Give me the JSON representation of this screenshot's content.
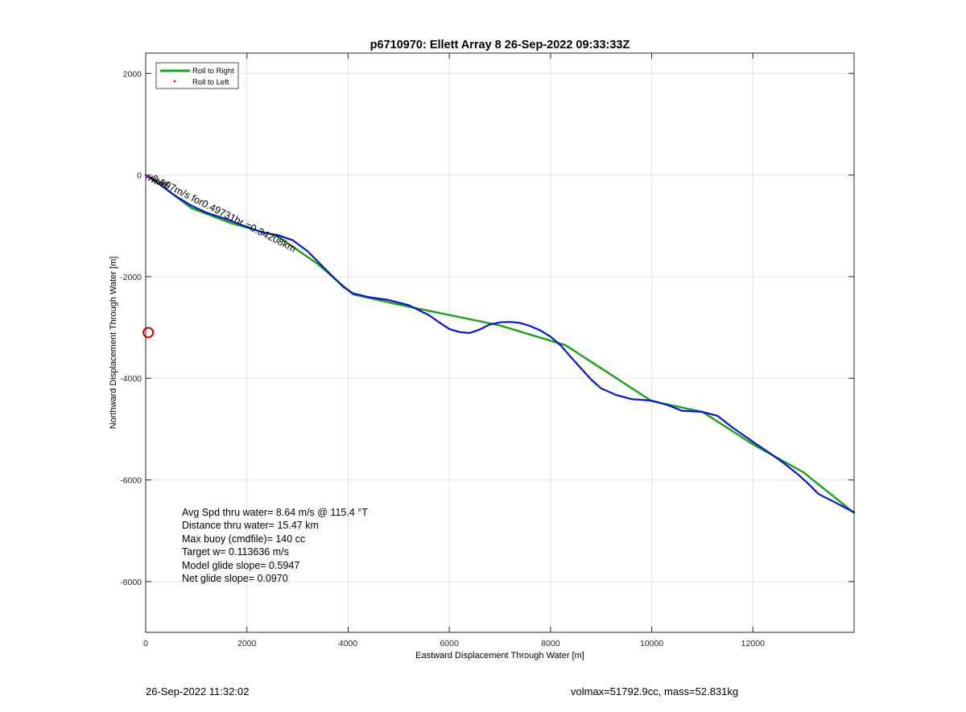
{
  "chart_data": {
    "type": "line",
    "title": "p6710970: Ellett Array 8 26-Sep-2022 09:33:33Z",
    "xlabel": "Eastward Displacement Through Water [m]",
    "ylabel": "Northward Displacement Through Water [m]",
    "xlim": [
      0,
      14000
    ],
    "ylim": [
      -9000,
      2400
    ],
    "xticks": [
      0,
      2000,
      4000,
      6000,
      8000,
      10000,
      12000
    ],
    "yticks": [
      2000,
      0,
      -2000,
      -4000,
      -6000,
      -8000
    ],
    "grid": true,
    "legend": {
      "position": "top-left",
      "entries": [
        {
          "label": "Roll to Right",
          "color": "#1aa01a",
          "marker": "line"
        },
        {
          "label": "Roll to Left",
          "color": "#ff0000",
          "marker": "dot"
        }
      ]
    },
    "series": [
      {
        "name": "Roll to Right",
        "color": "#1aa01a",
        "x": [
          0,
          300,
          900,
          1700,
          2600,
          3400,
          4100,
          5000,
          7000,
          8300,
          10000,
          11000,
          12000,
          13000,
          14000
        ],
        "y": [
          0,
          -200,
          -650,
          -950,
          -1200,
          -1750,
          -2350,
          -2550,
          -2960,
          -3350,
          -4450,
          -4660,
          -5300,
          -5850,
          -6650
        ]
      },
      {
        "color": "#0a14c8",
        "x": [
          0,
          150,
          300,
          600,
          900,
          1200,
          1600,
          2000,
          2300,
          2600,
          2900,
          3200,
          3600,
          3900,
          4100,
          4400,
          4800,
          5200,
          5600,
          5800,
          6000,
          6200,
          6400,
          6600,
          6800,
          7000,
          7200,
          7400,
          7600,
          7800,
          8000,
          8200,
          8400,
          8600,
          8800,
          9000,
          9300,
          9600,
          10000,
          10300,
          10600,
          11000,
          11300,
          11600,
          12000,
          12300,
          12600,
          12900,
          13100,
          13300,
          13600,
          14000
        ],
        "y": [
          0,
          -80,
          -200,
          -420,
          -600,
          -740,
          -870,
          -1020,
          -1130,
          -1180,
          -1280,
          -1500,
          -1900,
          -2200,
          -2330,
          -2400,
          -2460,
          -2560,
          -2760,
          -2900,
          -3030,
          -3090,
          -3110,
          -3040,
          -2940,
          -2900,
          -2890,
          -2910,
          -2970,
          -3060,
          -3180,
          -3350,
          -3580,
          -3800,
          -4020,
          -4200,
          -4330,
          -4410,
          -4440,
          -4520,
          -4640,
          -4660,
          -4740,
          -4970,
          -5250,
          -5450,
          -5660,
          -5900,
          -6080,
          -6280,
          -6430,
          -6640
        ]
      }
    ],
    "annotations": {
      "track_label": "-0.107m/s for0.49731hr =0.34208km",
      "marker_circle": {
        "x": 50,
        "y": -3100,
        "color": "#cc0000"
      },
      "stats_lines": [
        "Avg Spd thru water=  8.64 m/s @ 115.4 °T",
        "Distance thru water= 15.47 km",
        "Max buoy (cmdfile)= 140 cc",
        "Target w= 0.113636 m/s",
        "Model glide slope= 0.5947",
        "Net glide slope= 0.0970"
      ],
      "footer_left": "26-Sep-2022 11:32:02",
      "footer_right": "volmax=51792.9cc, mass=52.831kg"
    }
  }
}
